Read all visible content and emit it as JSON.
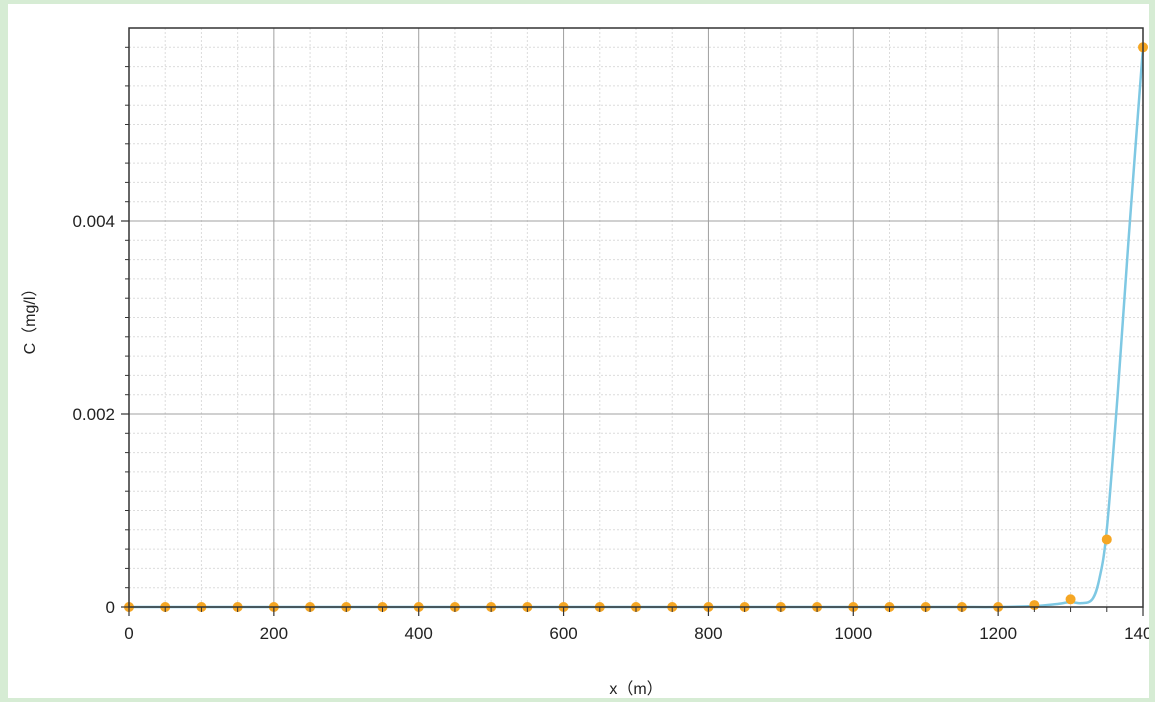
{
  "chart_data": {
    "type": "line",
    "title": "",
    "xlabel": "x（m）",
    "ylabel": "C（mg/l）",
    "xlim": [
      0,
      1400
    ],
    "ylim": [
      0,
      0.006
    ],
    "grid": true,
    "x_ticks": [
      0,
      200,
      400,
      600,
      800,
      1000,
      1200,
      1400
    ],
    "x_tick_labels": [
      "0",
      "200",
      "400",
      "600",
      "800",
      "1000",
      "1200",
      "1400"
    ],
    "y_ticks": [
      0,
      0.002,
      0.004
    ],
    "y_tick_labels": [
      "0",
      "0.002",
      "0.004"
    ],
    "colors": {
      "line": "#7ec8e3",
      "marker": "#f5a623",
      "grid_major": "#a0a0a0",
      "grid_minor": "#dcdcdc",
      "background": "#d6ecd4"
    },
    "series": [
      {
        "style": "line",
        "x": [
          0,
          50,
          100,
          150,
          200,
          250,
          300,
          350,
          400,
          450,
          500,
          550,
          600,
          650,
          700,
          750,
          800,
          850,
          900,
          950,
          1000,
          1050,
          1100,
          1150,
          1200,
          1250,
          1280,
          1300,
          1315,
          1330,
          1340,
          1350,
          1365,
          1380,
          1400
        ],
        "y": [
          0,
          0,
          0,
          0,
          0,
          0,
          0,
          0,
          0,
          0,
          0,
          0,
          0,
          0,
          0,
          0,
          0,
          0,
          0,
          0,
          0,
          0,
          0,
          0,
          0,
          1e-05,
          3e-05,
          5e-05,
          4e-05,
          8e-05,
          0.0003,
          0.0008,
          0.0022,
          0.0038,
          0.0058
        ]
      },
      {
        "style": "markers",
        "x": [
          0,
          50,
          100,
          150,
          200,
          250,
          300,
          350,
          400,
          450,
          500,
          550,
          600,
          650,
          700,
          750,
          800,
          850,
          900,
          950,
          1000,
          1050,
          1100,
          1150,
          1200,
          1250,
          1300,
          1350,
          1400
        ],
        "y": [
          0,
          0,
          0,
          0,
          0,
          0,
          0,
          0,
          0,
          0,
          0,
          0,
          0,
          0,
          0,
          0,
          0,
          0,
          0,
          0,
          0,
          0,
          0,
          0,
          0,
          2e-05,
          8e-05,
          0.0007,
          0.0058
        ]
      }
    ]
  }
}
